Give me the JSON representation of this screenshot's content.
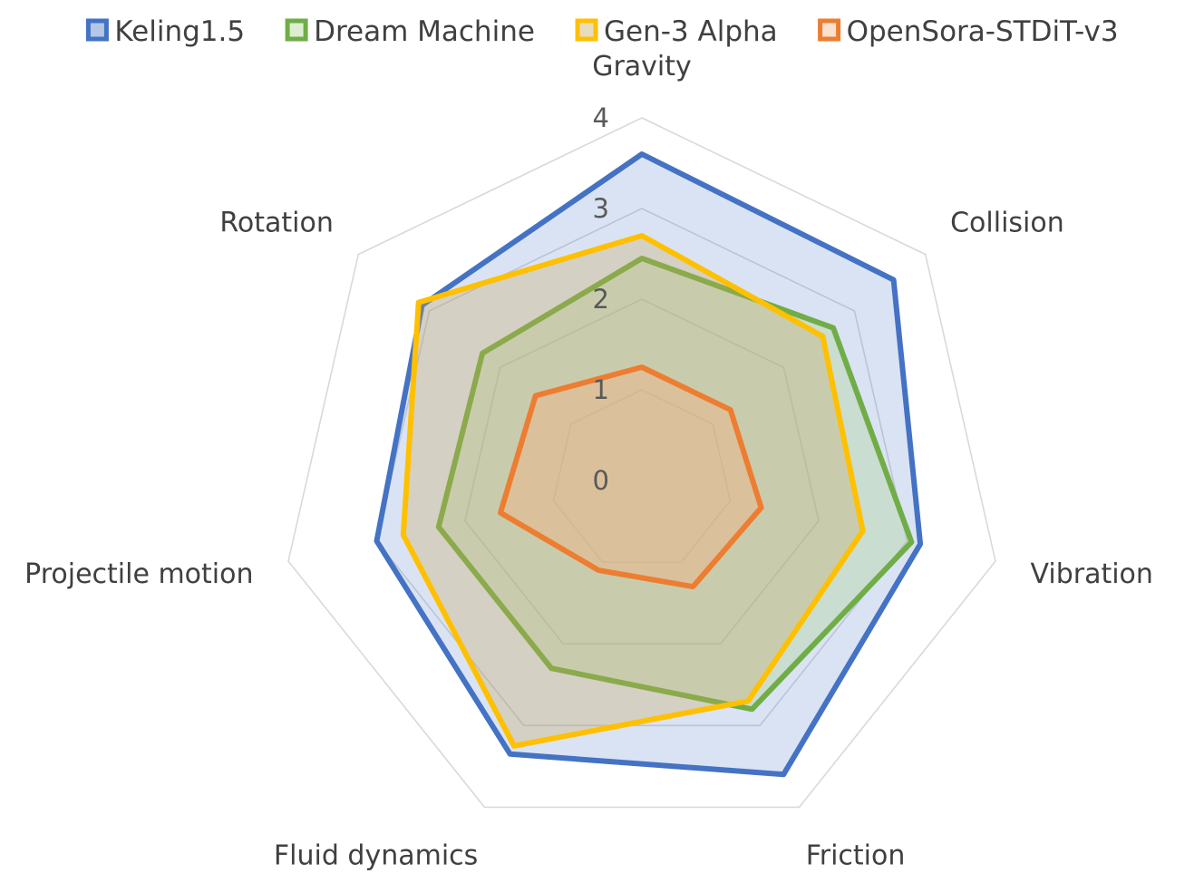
{
  "chart_data": {
    "type": "radar",
    "categories": [
      "Gravity",
      "Collision",
      "Vibration",
      "Friction",
      "Fluid dynamics",
      "Projectile motion",
      "Rotation"
    ],
    "rlim": [
      0,
      4
    ],
    "ticks": [
      "0",
      "1",
      "2",
      "3",
      "4"
    ],
    "grid": true,
    "legend_position": "top",
    "series": [
      {
        "name": "Keling1.5",
        "color": "#4472C4",
        "fill": "#4472C4",
        "fill_opacity": 0.2,
        "values": [
          3.6,
          3.55,
          3.15,
          3.6,
          3.35,
          3.0,
          3.1
        ]
      },
      {
        "name": "Dream Machine",
        "color": "#70AD47",
        "fill": "#A9D18E",
        "fill_opacity": 0.35,
        "values": [
          2.45,
          2.7,
          3.05,
          2.8,
          2.3,
          2.3,
          2.25
        ]
      },
      {
        "name": "Gen-3 Alpha",
        "color": "#FFC000",
        "fill": "#C9A65B",
        "fill_opacity": 0.3,
        "values": [
          2.7,
          2.55,
          2.5,
          2.7,
          3.25,
          2.7,
          3.15
        ]
      },
      {
        "name": "OpenSora-STDiT-v3",
        "color": "#ED7D31",
        "fill": "#F4B183",
        "fill_opacity": 0.4,
        "values": [
          1.25,
          1.25,
          1.35,
          1.3,
          1.1,
          1.6,
          1.5
        ]
      }
    ]
  }
}
